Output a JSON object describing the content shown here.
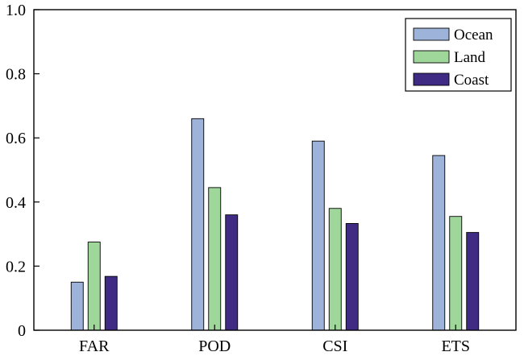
{
  "chart_data": {
    "type": "bar",
    "title": "",
    "xlabel": "",
    "ylabel": "",
    "categories": [
      "FAR",
      "POD",
      "CSI",
      "ETS"
    ],
    "ylim": [
      0,
      1.0
    ],
    "yticks": [
      0,
      0.2,
      0.4,
      0.6,
      0.8,
      1.0
    ],
    "ytick_labels": [
      "0",
      "0.2",
      "0.4",
      "0.6",
      "0.8",
      "1.0"
    ],
    "legend_position": "top-right",
    "series": [
      {
        "name": "Ocean",
        "color": "#9db3d9",
        "values": [
          0.15,
          0.66,
          0.59,
          0.545
        ]
      },
      {
        "name": "Land",
        "color": "#9fd69a",
        "values": [
          0.275,
          0.445,
          0.38,
          0.355
        ]
      },
      {
        "name": "Coast",
        "color": "#3f2a84",
        "values": [
          0.168,
          0.36,
          0.333,
          0.305
        ]
      }
    ]
  }
}
